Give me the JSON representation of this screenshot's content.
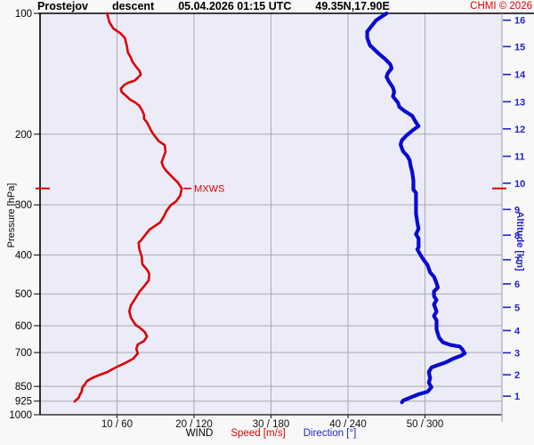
{
  "header": {
    "station": "Prostejov",
    "profile_type": "descent",
    "datetime": "05.04.2026 01:15 UTC",
    "coords": "49.35N,17.90E",
    "credit": "CHMI © 2026"
  },
  "chart_data": {
    "type": "line",
    "title": "Prostejov descent 05.04.2026 01:15 UTC 49.35N,17.90E",
    "grid": true,
    "colors": {
      "speed_line": "#dd0000",
      "direction_line": "#0a0ad0",
      "grid_line": "#aaaab4",
      "plot_bg": "#ececf8",
      "border_dark": "#000000",
      "border_right": "#aaaaaa",
      "altitude_text": "#2222cc",
      "pressure_text": "#000000",
      "credit_text": "#dd0000"
    },
    "x_axis": {
      "label_wind": "WIND",
      "label_speed": "Speed [m/s]",
      "label_direction": "Direction [°]",
      "speed_max": 60,
      "direction_max": 360,
      "ticks": [
        {
          "speed": 10,
          "direction": 60,
          "label": "10 / 60"
        },
        {
          "speed": 20,
          "direction": 120,
          "label": "20 / 120"
        },
        {
          "speed": 30,
          "direction": 180,
          "label": "30 / 180"
        },
        {
          "speed": 40,
          "direction": 240,
          "label": "40 / 240"
        },
        {
          "speed": 50,
          "direction": 300,
          "label": "50 / 300"
        }
      ]
    },
    "y_axis_left": {
      "label": "Pressure [hPa]",
      "scale": "log",
      "range": [
        100,
        1000
      ],
      "ticks": [
        {
          "hpa": 100,
          "label": "100",
          "grid": false
        },
        {
          "hpa": 200,
          "label": "200",
          "grid": true
        },
        {
          "hpa": 300,
          "label": "300",
          "grid": true
        },
        {
          "hpa": 400,
          "label": "400",
          "grid": true
        },
        {
          "hpa": 500,
          "label": "500",
          "grid": true
        },
        {
          "hpa": 600,
          "label": "600",
          "grid": true
        },
        {
          "hpa": 700,
          "label": "700",
          "grid": true
        },
        {
          "hpa": 850,
          "label": "850",
          "grid": true
        },
        {
          "hpa": 925,
          "label": "925",
          "grid": true
        },
        {
          "hpa": 1000,
          "label": "1000",
          "grid": false
        }
      ]
    },
    "y_axis_right": {
      "label": "Altitude [km]",
      "ticks": [
        {
          "km": "16",
          "hpa": 104
        },
        {
          "km": "15",
          "hpa": 121
        },
        {
          "km": "14",
          "hpa": 142
        },
        {
          "km": "13",
          "hpa": 166
        },
        {
          "km": "12",
          "hpa": 194
        },
        {
          "km": "11",
          "hpa": 227
        },
        {
          "km": "10",
          "hpa": 265
        },
        {
          "km": "9",
          "hpa": 308
        },
        {
          "km": "8",
          "hpa": 357
        },
        {
          "km": "7",
          "hpa": 411
        },
        {
          "km": "6",
          "hpa": 472
        },
        {
          "km": "5",
          "hpa": 540
        },
        {
          "km": "4",
          "hpa": 617
        },
        {
          "km": "3",
          "hpa": 701
        },
        {
          "km": "2",
          "hpa": 795
        },
        {
          "km": "1",
          "hpa": 899
        }
      ]
    },
    "max_wind": {
      "label": "MXWS",
      "pressure_hpa": 273,
      "speed_ms": 18.4
    },
    "series": [
      {
        "name": "Speed [m/s]",
        "kind": "speed",
        "color": "#dd0000",
        "points": [
          [
            100,
            8.7
          ],
          [
            105,
            9.0
          ],
          [
            109,
            9.5
          ],
          [
            112,
            10.4
          ],
          [
            115,
            11.0
          ],
          [
            121,
            11.3
          ],
          [
            125,
            11.4
          ],
          [
            129,
            11.8
          ],
          [
            132,
            12.0
          ],
          [
            136,
            12.5
          ],
          [
            139,
            12.9
          ],
          [
            142,
            13.1
          ],
          [
            144,
            12.8
          ],
          [
            147,
            12.3
          ],
          [
            149,
            11.4
          ],
          [
            151,
            10.9
          ],
          [
            154,
            10.5
          ],
          [
            157,
            10.6
          ],
          [
            160,
            11.1
          ],
          [
            164,
            11.7
          ],
          [
            167,
            12.4
          ],
          [
            170,
            12.9
          ],
          [
            175,
            13.3
          ],
          [
            179,
            13.5
          ],
          [
            183,
            13.5
          ],
          [
            187,
            13.9
          ],
          [
            197,
            14.5
          ],
          [
            201,
            14.8
          ],
          [
            208,
            15.4
          ],
          [
            213,
            16.2
          ],
          [
            221,
            16.3
          ],
          [
            229,
            16.0
          ],
          [
            235,
            15.8
          ],
          [
            241,
            16.0
          ],
          [
            247,
            16.4
          ],
          [
            257,
            17.3
          ],
          [
            264,
            17.9
          ],
          [
            273,
            18.4
          ],
          [
            285,
            18.2
          ],
          [
            295,
            17.6
          ],
          [
            300,
            17.0
          ],
          [
            311,
            16.4
          ],
          [
            320,
            16.1
          ],
          [
            332,
            15.6
          ],
          [
            346,
            14.2
          ],
          [
            368,
            13.1
          ],
          [
            373,
            12.8
          ],
          [
            387,
            12.9
          ],
          [
            403,
            13.2
          ],
          [
            422,
            13.3
          ],
          [
            435,
            13.9
          ],
          [
            446,
            14.2
          ],
          [
            463,
            14.1
          ],
          [
            479,
            13.5
          ],
          [
            494,
            12.9
          ],
          [
            512,
            12.4
          ],
          [
            534,
            11.8
          ],
          [
            553,
            11.6
          ],
          [
            573,
            11.8
          ],
          [
            597,
            12.4
          ],
          [
            606,
            12.9
          ],
          [
            622,
            13.6
          ],
          [
            638,
            13.9
          ],
          [
            655,
            13.5
          ],
          [
            668,
            12.7
          ],
          [
            685,
            12.5
          ],
          [
            703,
            12.7
          ],
          [
            725,
            12.1
          ],
          [
            744,
            11.0
          ],
          [
            763,
            9.8
          ],
          [
            783,
            8.7
          ],
          [
            799,
            7.5
          ],
          [
            811,
            6.7
          ],
          [
            824,
            6.1
          ],
          [
            841,
            5.8
          ],
          [
            854,
            5.5
          ],
          [
            876,
            5.4
          ],
          [
            889,
            5.2
          ],
          [
            908,
            5.0
          ],
          [
            922,
            4.6
          ],
          [
            927,
            4.5
          ]
        ]
      },
      {
        "name": "Direction [°]",
        "kind": "direction",
        "color": "#0a0ad0",
        "points": [
          [
            100,
            270
          ],
          [
            104,
            262
          ],
          [
            111,
            255
          ],
          [
            115,
            255
          ],
          [
            120,
            257
          ],
          [
            126,
            264
          ],
          [
            130,
            269
          ],
          [
            134,
            273
          ],
          [
            137,
            274
          ],
          [
            141,
            271
          ],
          [
            144,
            270
          ],
          [
            148,
            272
          ],
          [
            153,
            275
          ],
          [
            157,
            276
          ],
          [
            161,
            275
          ],
          [
            167,
            279
          ],
          [
            171,
            280
          ],
          [
            175,
            284
          ],
          [
            180,
            290
          ],
          [
            187,
            293
          ],
          [
            191,
            295
          ],
          [
            195,
            291
          ],
          [
            201,
            286
          ],
          [
            207,
            282
          ],
          [
            212,
            281
          ],
          [
            217,
            282
          ],
          [
            221,
            283
          ],
          [
            226,
            286
          ],
          [
            232,
            288
          ],
          [
            241,
            289
          ],
          [
            248,
            290
          ],
          [
            261,
            291
          ],
          [
            275,
            291
          ],
          [
            280,
            293
          ],
          [
            289,
            293
          ],
          [
            300,
            293
          ],
          [
            315,
            293
          ],
          [
            332,
            294
          ],
          [
            344,
            295
          ],
          [
            355,
            293
          ],
          [
            364,
            295
          ],
          [
            383,
            295
          ],
          [
            387,
            294
          ],
          [
            397,
            296
          ],
          [
            407,
            298
          ],
          [
            424,
            302
          ],
          [
            442,
            304
          ],
          [
            453,
            307
          ],
          [
            470,
            309
          ],
          [
            482,
            310
          ],
          [
            493,
            307
          ],
          [
            506,
            307
          ],
          [
            518,
            309
          ],
          [
            531,
            307
          ],
          [
            553,
            309
          ],
          [
            567,
            307
          ],
          [
            582,
            309
          ],
          [
            597,
            309
          ],
          [
            612,
            309
          ],
          [
            628,
            310
          ],
          [
            643,
            311
          ],
          [
            660,
            314
          ],
          [
            670,
            320
          ],
          [
            676,
            327
          ],
          [
            686,
            329
          ],
          [
            703,
            331
          ],
          [
            713,
            328
          ],
          [
            725,
            322
          ],
          [
            741,
            316
          ],
          [
            752,
            310
          ],
          [
            763,
            305
          ],
          [
            783,
            303
          ],
          [
            811,
            304
          ],
          [
            832,
            303
          ],
          [
            854,
            305
          ],
          [
            876,
            302
          ],
          [
            889,
            295
          ],
          [
            908,
            288
          ],
          [
            922,
            283
          ],
          [
            931,
            282
          ]
        ]
      }
    ]
  }
}
